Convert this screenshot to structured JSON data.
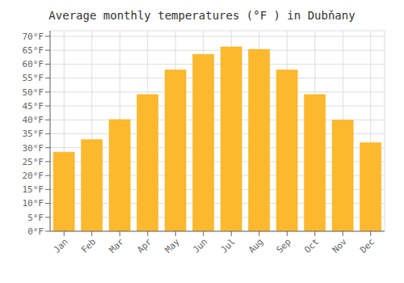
{
  "chart_data": {
    "type": "bar",
    "title": "Average monthly temperatures (°F ) in Dubňany",
    "categories": [
      "Jan",
      "Feb",
      "Mar",
      "Apr",
      "May",
      "Jun",
      "Jul",
      "Aug",
      "Sep",
      "Oct",
      "Nov",
      "Dec"
    ],
    "values": [
      28.4,
      32.9,
      40.1,
      49.1,
      57.9,
      63.5,
      66.2,
      65.3,
      57.9,
      49.1,
      39.9,
      31.8
    ],
    "color": "#FDB92E",
    "ylim": [
      0,
      72
    ],
    "yticks": [
      {
        "value": 0,
        "label": "0°F"
      },
      {
        "value": 5,
        "label": "5°F"
      },
      {
        "value": 10,
        "label": "10°F"
      },
      {
        "value": 15,
        "label": "15°F"
      },
      {
        "value": 20,
        "label": "20°F"
      },
      {
        "value": 25,
        "label": "25°F"
      },
      {
        "value": 30,
        "label": "30°F"
      },
      {
        "value": 35,
        "label": "35°F"
      },
      {
        "value": 40,
        "label": "40°F"
      },
      {
        "value": 45,
        "label": "45°F"
      },
      {
        "value": 50,
        "label": "50°F"
      },
      {
        "value": 55,
        "label": "55°F"
      },
      {
        "value": 60,
        "label": "60°F"
      },
      {
        "value": 65,
        "label": "65°F"
      },
      {
        "value": 70,
        "label": "70°F"
      }
    ],
    "grid": true
  }
}
